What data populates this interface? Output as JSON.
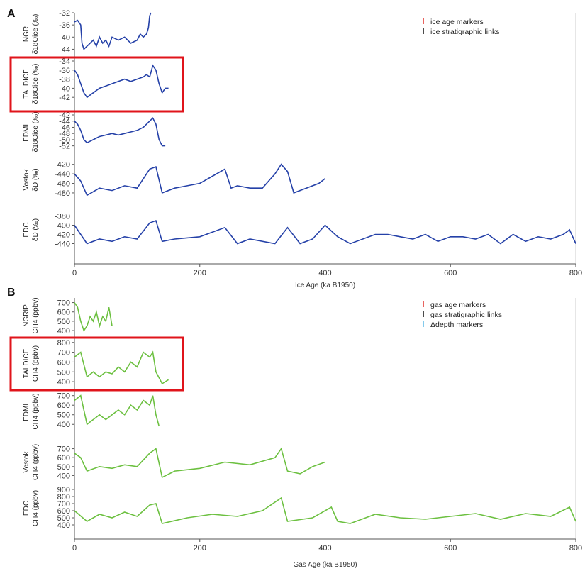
{
  "panels": [
    {
      "letter": "A",
      "xlabel": "Ice Age (ka B1950)",
      "x_ticks": [
        "0",
        "200",
        "400",
        "600",
        "800"
      ],
      "line_color": "#2541a8",
      "legend": [
        {
          "label": "ice age markers",
          "color": "#e0312b"
        },
        {
          "label": "ice stratigraphic links",
          "color": "#111111"
        }
      ],
      "highlight_color": "#e0141b"
    },
    {
      "letter": "B",
      "xlabel": "Gas Age (ka B1950)",
      "x_ticks": [
        "0",
        "200",
        "400",
        "600",
        "800"
      ],
      "line_color": "#6cc040",
      "legend": [
        {
          "label": "gas age markers",
          "color": "#e0312b"
        },
        {
          "label": "gas stratigraphic links",
          "color": "#111111"
        },
        {
          "label": "Δdepth markers",
          "color": "#5ab8e6"
        }
      ],
      "highlight_color": "#e0141b"
    }
  ],
  "chart_data": [
    {
      "type": "line",
      "panel": "A",
      "xlabel": "Ice Age (ka B1950)",
      "xlim": [
        0,
        800
      ],
      "series": [
        {
          "name": "NGR",
          "ylabel_unit": "δ18Oice (‰)",
          "ylim": [
            -46,
            -32
          ],
          "y_ticks": [
            -32,
            -36,
            -40,
            -44
          ],
          "x": [
            0,
            5,
            10,
            12,
            15,
            20,
            25,
            30,
            35,
            40,
            45,
            50,
            55,
            60,
            70,
            80,
            90,
            100,
            105,
            110,
            115,
            118,
            120,
            122
          ],
          "y": [
            -35,
            -34.5,
            -36,
            -42,
            -44,
            -43,
            -42,
            -41,
            -43,
            -40,
            -42,
            -41,
            -43,
            -40,
            -41,
            -40,
            -42,
            -41,
            -39,
            -40,
            -39,
            -37,
            -33,
            -32
          ]
        },
        {
          "name": "TALDICE",
          "ylabel_unit": "δ18Oice (‰)",
          "ylim": [
            -44,
            -34
          ],
          "y_ticks": [
            -34,
            -36,
            -38,
            -40,
            -42
          ],
          "x": [
            0,
            5,
            10,
            15,
            20,
            30,
            40,
            50,
            60,
            70,
            80,
            90,
            100,
            110,
            115,
            120,
            125,
            130,
            135,
            140,
            145,
            150
          ],
          "y": [
            -36,
            -37,
            -39,
            -41,
            -42,
            -41,
            -40,
            -39.5,
            -39,
            -38.5,
            -38,
            -38.5,
            -38,
            -37.5,
            -37,
            -37.5,
            -35,
            -36,
            -39,
            -41,
            -40,
            -40
          ]
        },
        {
          "name": "EDML",
          "ylabel_unit": "δ18Oice (‰)",
          "ylim": [
            -53,
            -42
          ],
          "y_ticks": [
            -42,
            -44,
            -46,
            -48,
            -50,
            -52
          ],
          "x": [
            0,
            5,
            10,
            15,
            20,
            30,
            40,
            50,
            60,
            70,
            80,
            90,
            100,
            110,
            120,
            125,
            130,
            135,
            140,
            145
          ],
          "y": [
            -44,
            -45,
            -47,
            -50,
            -51,
            -50,
            -49,
            -48.5,
            -48,
            -48.5,
            -48,
            -47.5,
            -47,
            -46,
            -44,
            -43,
            -45,
            -50,
            -52,
            -52
          ]
        },
        {
          "name": "Vostok",
          "ylabel_unit": "δD (‰)",
          "ylim": [
            -495,
            -410
          ],
          "y_ticks": [
            -420,
            -440,
            -460,
            -480
          ],
          "x": [
            0,
            10,
            20,
            40,
            60,
            80,
            100,
            120,
            130,
            140,
            160,
            180,
            200,
            220,
            240,
            250,
            260,
            280,
            300,
            320,
            330,
            340,
            350,
            370,
            390,
            400
          ],
          "y": [
            -440,
            -455,
            -485,
            -470,
            -475,
            -465,
            -470,
            -430,
            -425,
            -480,
            -470,
            -465,
            -460,
            -445,
            -430,
            -470,
            -465,
            -470,
            -470,
            -440,
            -420,
            -435,
            -480,
            -470,
            -460,
            -450
          ]
        },
        {
          "name": "EDC",
          "ylabel_unit": "δD (‰)",
          "ylim": [
            -450,
            -370
          ],
          "y_ticks": [
            -380,
            -400,
            -420,
            -440
          ],
          "x": [
            0,
            10,
            20,
            40,
            60,
            80,
            100,
            120,
            130,
            140,
            160,
            200,
            240,
            260,
            280,
            320,
            340,
            360,
            380,
            400,
            420,
            440,
            480,
            500,
            520,
            540,
            560,
            580,
            600,
            620,
            640,
            660,
            680,
            700,
            720,
            740,
            760,
            780,
            790,
            800
          ],
          "y": [
            -400,
            -420,
            -440,
            -430,
            -435,
            -425,
            -430,
            -395,
            -390,
            -435,
            -430,
            -425,
            -405,
            -440,
            -430,
            -440,
            -405,
            -440,
            -430,
            -400,
            -425,
            -440,
            -420,
            -420,
            -425,
            -430,
            -420,
            -435,
            -425,
            -425,
            -430,
            -420,
            -440,
            -420,
            -435,
            -425,
            -430,
            -420,
            -410,
            -440
          ]
        }
      ]
    },
    {
      "type": "line",
      "panel": "B",
      "xlabel": "Gas Age (ka B1950)",
      "xlim": [
        0,
        800
      ],
      "series": [
        {
          "name": "NGRIP",
          "ylabel_unit": "CH4 (ppbv)",
          "ylim": [
            370,
            750
          ],
          "y_ticks": [
            400,
            500,
            600,
            700
          ],
          "x": [
            0,
            5,
            10,
            15,
            20,
            25,
            30,
            35,
            40,
            45,
            50,
            55,
            60
          ],
          "y": [
            700,
            650,
            500,
            400,
            450,
            550,
            500,
            600,
            450,
            550,
            500,
            650,
            450
          ]
        },
        {
          "name": "TALDICE",
          "ylabel_unit": "CH4 (ppbv)",
          "ylim": [
            350,
            820
          ],
          "y_ticks": [
            400,
            500,
            600,
            700,
            800
          ],
          "x": [
            0,
            10,
            20,
            30,
            40,
            50,
            60,
            70,
            80,
            90,
            100,
            110,
            120,
            125,
            130,
            140,
            150
          ],
          "y": [
            650,
            700,
            450,
            500,
            450,
            500,
            480,
            550,
            500,
            600,
            550,
            700,
            650,
            700,
            500,
            380,
            420
          ]
        },
        {
          "name": "EDML",
          "ylabel_unit": "CH4 (ppbv)",
          "ylim": [
            350,
            720
          ],
          "y_ticks": [
            400,
            500,
            600,
            700
          ],
          "x": [
            0,
            10,
            20,
            30,
            40,
            50,
            60,
            70,
            80,
            90,
            100,
            110,
            120,
            125,
            130,
            135
          ],
          "y": [
            650,
            700,
            400,
            450,
            500,
            450,
            500,
            550,
            500,
            600,
            550,
            650,
            600,
            700,
            500,
            380
          ]
        },
        {
          "name": "Vostok",
          "ylabel_unit": "CH4 (ppbv)",
          "ylim": [
            340,
            760
          ],
          "y_ticks": [
            400,
            500,
            600,
            700
          ],
          "x": [
            0,
            10,
            20,
            40,
            60,
            80,
            100,
            120,
            130,
            140,
            160,
            200,
            240,
            280,
            320,
            330,
            340,
            360,
            380,
            400
          ],
          "y": [
            650,
            600,
            450,
            500,
            480,
            520,
            500,
            650,
            700,
            380,
            450,
            480,
            550,
            520,
            600,
            700,
            450,
            420,
            500,
            550
          ]
        },
        {
          "name": "EDC",
          "ylabel_unit": "CH4 (ppbv)",
          "ylim": [
            350,
            920
          ],
          "y_ticks": [
            400,
            500,
            600,
            700,
            800,
            900
          ],
          "x": [
            0,
            20,
            40,
            60,
            80,
            100,
            120,
            130,
            140,
            180,
            220,
            260,
            300,
            330,
            340,
            380,
            410,
            420,
            440,
            480,
            520,
            560,
            600,
            640,
            680,
            720,
            760,
            790,
            800
          ],
          "y": [
            600,
            450,
            550,
            500,
            580,
            520,
            680,
            700,
            420,
            500,
            550,
            520,
            600,
            780,
            450,
            500,
            650,
            450,
            420,
            550,
            500,
            480,
            520,
            560,
            480,
            560,
            520,
            650,
            450
          ]
        }
      ]
    }
  ]
}
